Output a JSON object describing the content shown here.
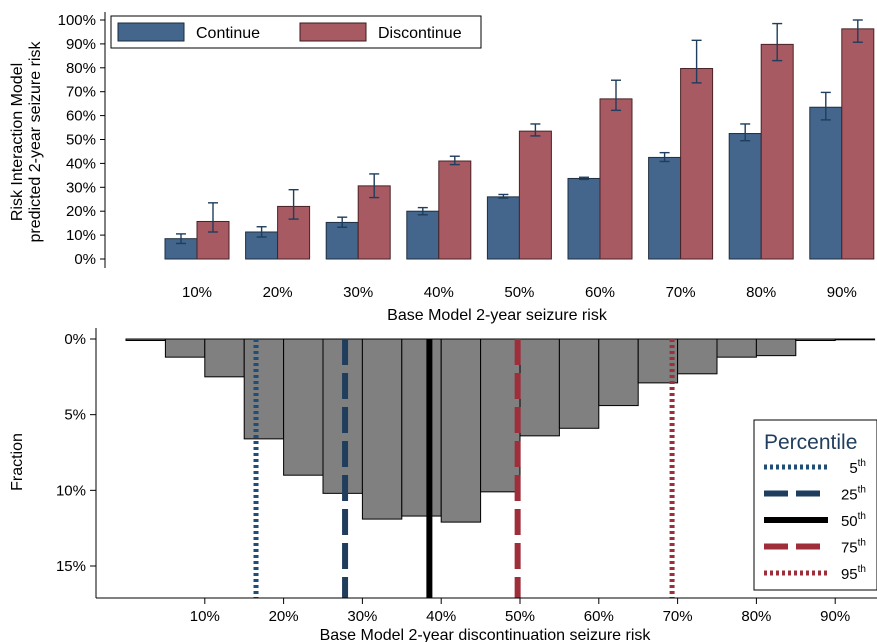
{
  "chart_data": [
    {
      "type": "bar",
      "xlabel": "Base Model 2-year seizure risk",
      "ylabel_lines": [
        "Risk Interaction Model",
        "predicted 2-year seizure risk"
      ],
      "categories": [
        "10%",
        "20%",
        "30%",
        "40%",
        "50%",
        "60%",
        "70%",
        "80%",
        "90%"
      ],
      "ylim": [
        0,
        100
      ],
      "yticks": [
        0,
        10,
        20,
        30,
        40,
        50,
        60,
        70,
        80,
        90,
        100
      ],
      "ytick_labels": [
        "0%",
        "10%",
        "20%",
        "30%",
        "40%",
        "50%",
        "60%",
        "70%",
        "80%",
        "90%",
        "100%"
      ],
      "grid": false,
      "legend_position": "top-left",
      "series": [
        {
          "name": "Continue",
          "color": "#44668C",
          "values": [
            8.5,
            11.3,
            15.3,
            20.0,
            26.0,
            33.7,
            42.5,
            52.5,
            63.5
          ],
          "error_low": [
            6.5,
            9.2,
            13.3,
            18.5,
            25.5,
            33.3,
            40.8,
            49.5,
            58.2
          ],
          "error_high": [
            10.5,
            13.5,
            17.5,
            21.5,
            27.0,
            34.2,
            44.5,
            56.5,
            69.7
          ]
        },
        {
          "name": "Discontinue",
          "color": "#A85A62",
          "values": [
            15.7,
            22.0,
            30.6,
            41.0,
            53.5,
            67.0,
            79.7,
            89.8,
            96.3
          ],
          "error_low": [
            11.3,
            16.7,
            25.7,
            39.5,
            51.5,
            62.2,
            73.7,
            83.0,
            90.7
          ],
          "error_high": [
            23.5,
            29.0,
            35.6,
            43.0,
            56.5,
            74.8,
            91.5,
            98.5,
            100.0
          ]
        }
      ]
    },
    {
      "type": "bar",
      "subtype": "histogram",
      "xlabel": "Base Model 2-year discontinuation seizure risk",
      "ylabel": "Fraction",
      "xtick_labels": [
        "10%",
        "20%",
        "30%",
        "40%",
        "50%",
        "60%",
        "70%",
        "80%",
        "90%"
      ],
      "xticks": [
        10,
        20,
        30,
        40,
        50,
        60,
        70,
        80,
        90
      ],
      "ylim": [
        0,
        17
      ],
      "ytick_labels": [
        "0%",
        "5%",
        "10%",
        "15%"
      ],
      "yticks": [
        0,
        5,
        10,
        15
      ],
      "y_inverted": true,
      "bin_color": "#808080",
      "bins": [
        {
          "from": 0,
          "to": 5,
          "value": 0.1
        },
        {
          "from": 5,
          "to": 10,
          "value": 1.2
        },
        {
          "from": 10,
          "to": 15,
          "value": 2.5
        },
        {
          "from": 15,
          "to": 20,
          "value": 6.6
        },
        {
          "from": 20,
          "to": 25,
          "value": 9.0
        },
        {
          "from": 25,
          "to": 30,
          "value": 10.2
        },
        {
          "from": 30,
          "to": 35,
          "value": 11.9
        },
        {
          "from": 35,
          "to": 40,
          "value": 11.7
        },
        {
          "from": 40,
          "to": 45,
          "value": 12.1
        },
        {
          "from": 45,
          "to": 50,
          "value": 10.1
        },
        {
          "from": 50,
          "to": 55,
          "value": 6.4
        },
        {
          "from": 55,
          "to": 60,
          "value": 5.9
        },
        {
          "from": 60,
          "to": 65,
          "value": 4.4
        },
        {
          "from": 65,
          "to": 70,
          "value": 2.9
        },
        {
          "from": 70,
          "to": 75,
          "value": 2.3
        },
        {
          "from": 75,
          "to": 80,
          "value": 1.2
        },
        {
          "from": 80,
          "to": 85,
          "value": 1.1
        },
        {
          "from": 85,
          "to": 90,
          "value": 0.1
        },
        {
          "from": 90,
          "to": 95,
          "value": 0.05
        }
      ],
      "legend_title": "Percentile",
      "legend_position": "right",
      "percentiles": [
        {
          "base": "5",
          "sup": "th",
          "value": 16.5,
          "color": "#1F4E79",
          "style": "dotted"
        },
        {
          "base": "25",
          "sup": "th",
          "value": 27.8,
          "color": "#1F3D5C",
          "style": "long-dash"
        },
        {
          "base": "50",
          "sup": "th",
          "value": 38.5,
          "color": "#000000",
          "style": "solid"
        },
        {
          "base": "75",
          "sup": "th",
          "value": 49.7,
          "color": "#9E2F3A",
          "style": "long-dash"
        },
        {
          "base": "95",
          "sup": "th",
          "value": 69.3,
          "color": "#9E2F3A",
          "style": "dotted"
        }
      ]
    }
  ]
}
